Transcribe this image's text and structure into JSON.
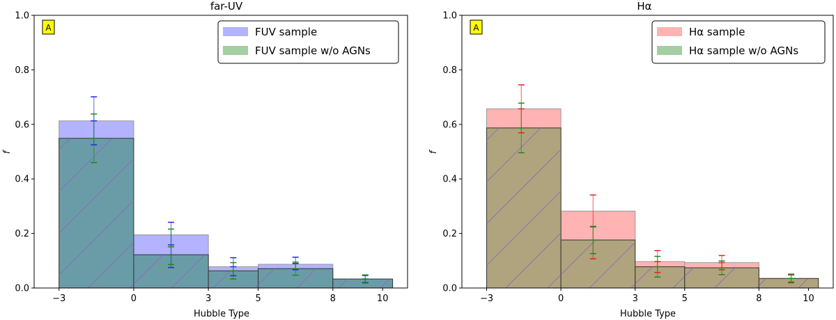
{
  "chart_data": [
    {
      "type": "bar",
      "title": "far-UV",
      "xlabel": "Hubble Type",
      "ylabel": "f",
      "badge": "A",
      "xlim": [
        -4,
        11
      ],
      "ylim": [
        0,
        1.0
      ],
      "xticks": [
        -3,
        0,
        3,
        5,
        8,
        10
      ],
      "xtick_labels": [
        "−3",
        "0",
        "3",
        "5",
        "8",
        "10"
      ],
      "yticks": [
        0,
        0.2,
        0.4,
        0.6,
        0.8,
        1.0
      ],
      "ytick_labels": [
        "0.0",
        "0.2",
        "0.4",
        "0.6",
        "0.8",
        "1.0"
      ],
      "bin_edges": [
        -3,
        0,
        3,
        5,
        8,
        10.4
      ],
      "legend_position": "top-right",
      "series": [
        {
          "name": "FUV sample",
          "fill": "#b3b3ff",
          "values": [
            0.613,
            0.195,
            0.078,
            0.087,
            0.033
          ],
          "errbar_color": "#2323e6",
          "errbar_x": [
            -1.6,
            1.5,
            4.0,
            6.5,
            9.3
          ],
          "errbar_y": [
            0.613,
            0.158,
            0.078,
            0.09,
            0.033
          ],
          "errbar_err": [
            0.088,
            0.083,
            0.033,
            0.023,
            0.013
          ]
        },
        {
          "name": "FUV sample w/o AGNs",
          "fill": "#6a9ca7",
          "values": [
            0.549,
            0.122,
            0.063,
            0.071,
            0.033
          ],
          "errbar_color": "#1a8a1a",
          "errbar_x": [
            -1.6,
            1.5,
            4.0,
            6.5,
            9.3
          ],
          "errbar_y": [
            0.549,
            0.151,
            0.063,
            0.071,
            0.033
          ],
          "errbar_err": [
            0.089,
            0.065,
            0.03,
            0.024,
            0.015
          ]
        }
      ]
    },
    {
      "type": "bar",
      "title": "Hα",
      "xlabel": "Hubble Type",
      "ylabel": "f",
      "badge": "A",
      "xlim": [
        -4,
        11
      ],
      "ylim": [
        0,
        1.0
      ],
      "xticks": [
        -3,
        0,
        3,
        5,
        8,
        10
      ],
      "xtick_labels": [
        "−3",
        "0",
        "3",
        "5",
        "8",
        "10"
      ],
      "yticks": [
        0,
        0.2,
        0.4,
        0.6,
        0.8,
        1.0
      ],
      "ytick_labels": [
        "0.0",
        "0.2",
        "0.4",
        "0.6",
        "0.8",
        "1.0"
      ],
      "bin_edges": [
        -3,
        0,
        3,
        5,
        8,
        10.4
      ],
      "legend_position": "top-right",
      "series": [
        {
          "name": "Hα sample",
          "fill": "#ffb3b3",
          "values": [
            0.657,
            0.282,
            0.097,
            0.093,
            0.035
          ],
          "errbar_color": "#e62020",
          "errbar_x": [
            -1.6,
            1.3,
            3.9,
            6.5,
            9.3
          ],
          "errbar_y": [
            0.657,
            0.224,
            0.097,
            0.093,
            0.035
          ],
          "errbar_err": [
            0.088,
            0.117,
            0.04,
            0.026,
            0.013
          ]
        },
        {
          "name": "Hα sample w/o AGNs",
          "fill": "#b0a47e",
          "values": [
            0.587,
            0.176,
            0.078,
            0.074,
            0.035
          ],
          "errbar_color": "#1a8a1a",
          "errbar_x": [
            -1.6,
            1.3,
            3.9,
            6.5,
            9.3
          ],
          "errbar_y": [
            0.587,
            0.176,
            0.078,
            0.074,
            0.035
          ],
          "errbar_err": [
            0.091,
            0.05,
            0.038,
            0.025,
            0.016
          ]
        }
      ]
    }
  ]
}
